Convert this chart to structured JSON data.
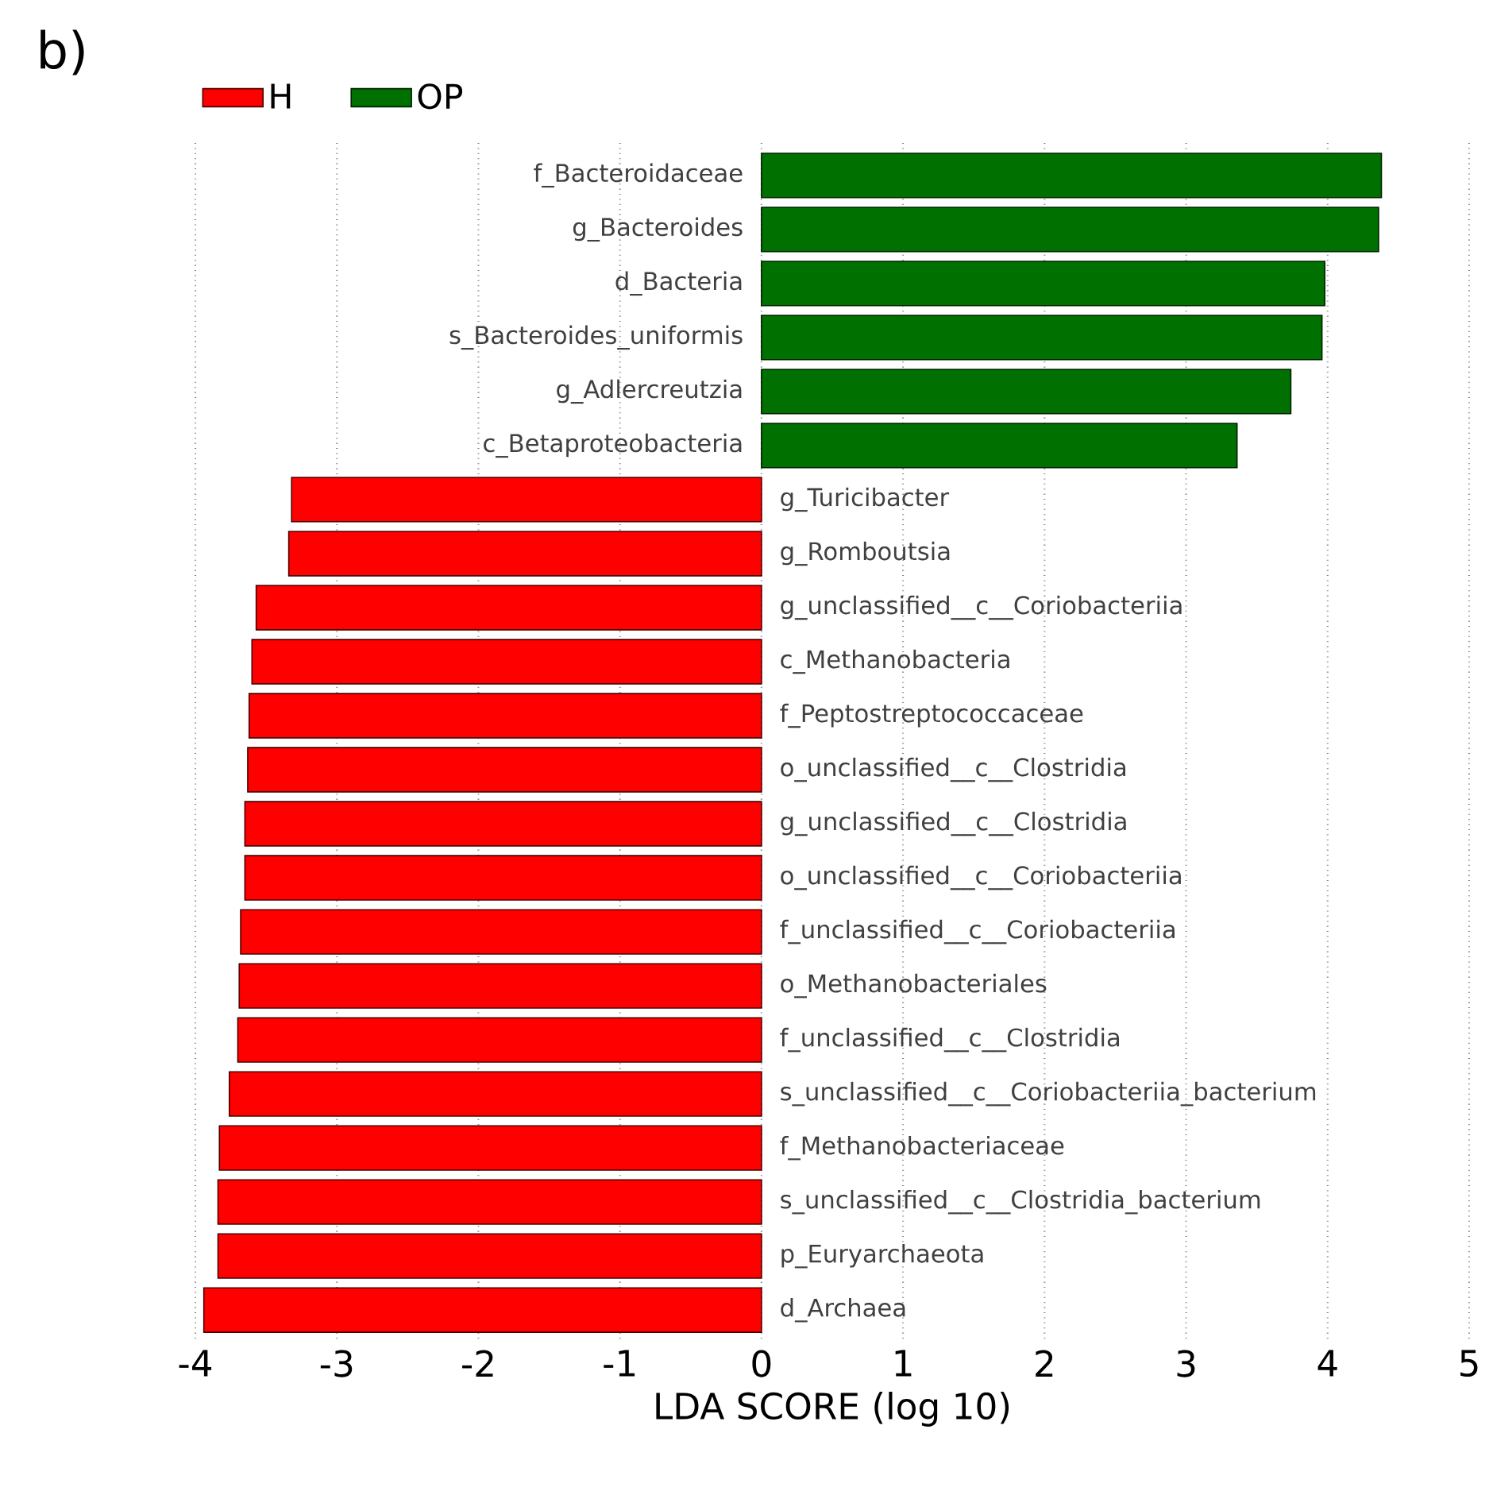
{
  "chart_data": {
    "type": "bar",
    "orientation": "horizontal",
    "title": "b)",
    "xlabel": "LDA SCORE (log 10)",
    "categories": [
      "f_Bacteroidaceae",
      "g_Bacteroides",
      "d_Bacteria",
      "s_Bacteroides_uniformis",
      "g_Adlercreutzia",
      "c_Betaproteobacteria",
      "g_Turicibacter",
      "g_Romboutsia",
      "g_unclassified__c__Coriobacteriia",
      "c_Methanobacteria",
      "f_Peptostreptococcaceae",
      "o_unclassified__c__Clostridia",
      "g_unclassified__c__Clostridia",
      "o_unclassified__c__Coriobacteriia",
      "f_unclassified__c__Coriobacteriia",
      "o_Methanobacteriales",
      "f_unclassified__c__Clostridia",
      "s_unclassified__c__Coriobacteriia_bacterium",
      "f_Methanobacteriaceae",
      "s_unclassified__c__Clostridia_bacterium",
      "p_Euryarchaeota",
      "d_Archaea"
    ],
    "series": [
      {
        "name": "H",
        "color": "#ff0000",
        "values": [
          null,
          null,
          null,
          null,
          null,
          null,
          -3.32,
          -3.34,
          -3.57,
          -3.6,
          -3.62,
          -3.63,
          -3.65,
          -3.65,
          -3.68,
          -3.69,
          -3.7,
          -3.76,
          -3.83,
          -3.84,
          -3.84,
          -3.94
        ]
      },
      {
        "name": "OP",
        "color": "#007000",
        "values": [
          4.38,
          4.36,
          3.98,
          3.96,
          3.74,
          3.36,
          null,
          null,
          null,
          null,
          null,
          null,
          null,
          null,
          null,
          null,
          null,
          null,
          null,
          null,
          null,
          null
        ]
      }
    ],
    "xlim": [
      -4,
      5
    ],
    "xticks": [
      -4,
      -3,
      -2,
      -1,
      0,
      1,
      2,
      3,
      4,
      5
    ],
    "grid": "x",
    "legend": "top left"
  }
}
